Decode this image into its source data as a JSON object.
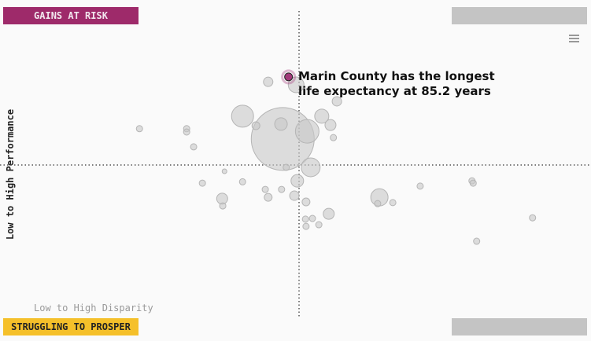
{
  "chart_data": {
    "type": "bubble",
    "quadrant_labels": {
      "top_left": "GAINS AT RISK",
      "bottom_left": "STRUGGLING TO PROSPER"
    },
    "ylabel": "Low to High Performance",
    "xlabel": "Low to High Disparity",
    "annotation": "Marin County has the longest life expectancy at 85.2 years",
    "xlim": [
      0,
      100
    ],
    "ylim": [
      0,
      100
    ],
    "series": [
      {
        "color": "#c8c8c8",
        "x": [
          47.2,
          40.3,
          51.4,
          49.5,
          52.0,
          53.9,
          56.5,
          63.8,
          46.9,
          55.4,
          44.7,
          49.7,
          36.8,
          55.1,
          42.6,
          55.9,
          22.6,
          30.7,
          30.7,
          31.9,
          47.8,
          37.2,
          40.3,
          33.4,
          36.9,
          44.2,
          44.7,
          47.0,
          49.2,
          51.2,
          63.5,
          66.1,
          70.8,
          79.7,
          79.9,
          51.1,
          52.3,
          51.2,
          53.4,
          90.1,
          80.5
        ],
        "values": [
          57.9,
          64.8,
          60.2,
          74.3,
          49.3,
          64.8,
          69.3,
          40.2,
          62.4,
          62.1,
          75.2,
          45.2,
          39.8,
          35.2,
          61.9,
          58.3,
          61.0,
          61.0,
          60.0,
          55.5,
          49.3,
          48.1,
          44.9,
          44.5,
          37.6,
          42.6,
          40.2,
          42.6,
          40.7,
          38.8,
          38.3,
          38.6,
          43.6,
          45.2,
          44.5,
          33.6,
          33.8,
          31.4,
          31.9,
          34.0,
          26.9
        ],
        "sizes": [
          40,
          14,
          15,
          10,
          12,
          9,
          6,
          11,
          8,
          7,
          6,
          8,
          7,
          7,
          5,
          4,
          4,
          4,
          4,
          4,
          4,
          3,
          4,
          4,
          4,
          4,
          5,
          4,
          6,
          5,
          4,
          4,
          4,
          4,
          4,
          4,
          4,
          4,
          4,
          4,
          4
        ]
      },
      {
        "color": "#a23a7a",
        "x": [
          48.2
        ],
        "values": [
          76.7
        ],
        "sizes": [
          5
        ]
      }
    ]
  }
}
